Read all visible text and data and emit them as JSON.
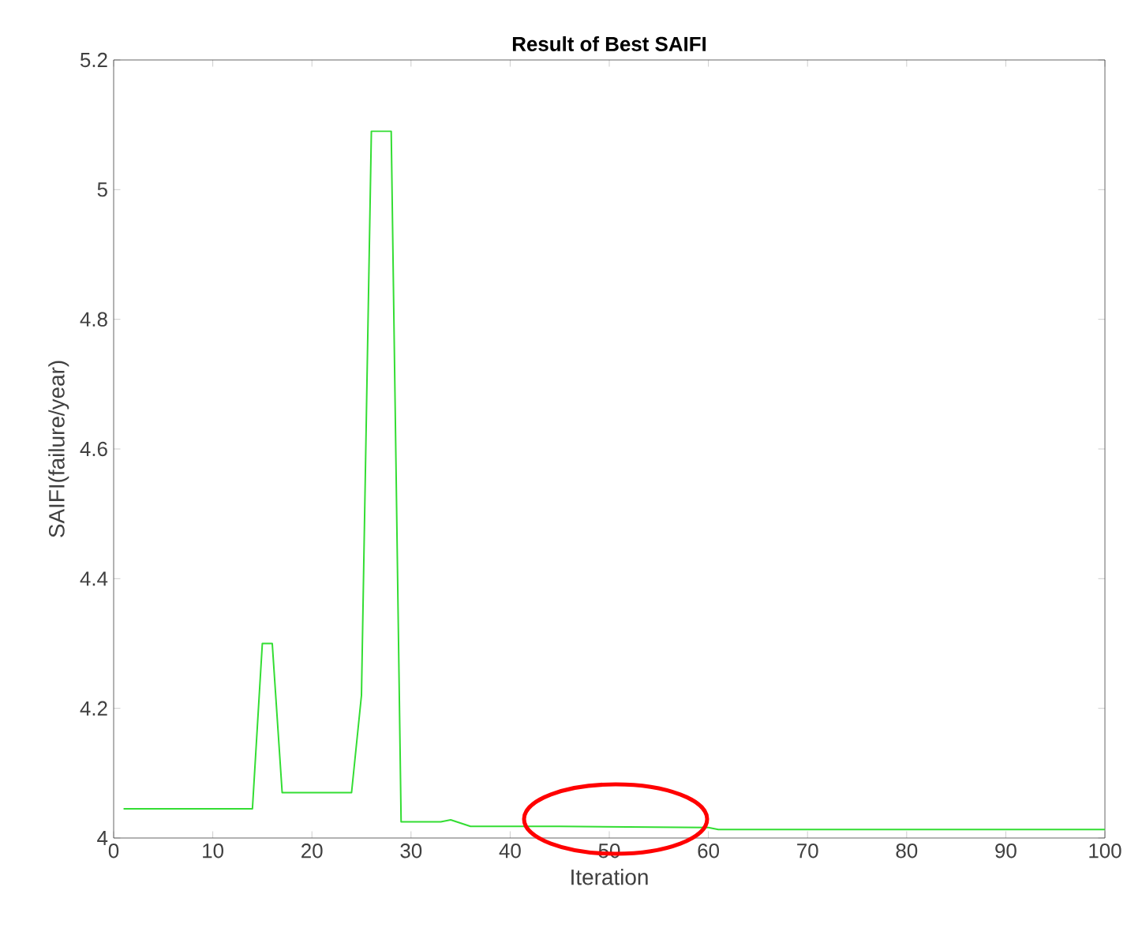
{
  "chart_data": {
    "type": "line",
    "title": "Result of Best SAIFI",
    "xlabel": "Iteration",
    "ylabel": "SAIFI(failure/year)",
    "x": [
      1,
      14,
      15,
      16,
      17,
      24,
      25,
      26,
      28,
      29,
      33,
      34,
      36,
      45,
      60,
      61,
      100
    ],
    "series": [
      {
        "color": "#33dd33",
        "values": [
          4.045,
          4.045,
          4.3,
          4.3,
          4.07,
          4.07,
          4.22,
          5.09,
          5.09,
          4.025,
          4.025,
          4.028,
          4.018,
          4.018,
          4.016,
          4.013,
          4.013
        ]
      }
    ],
    "xlim": [
      0,
      100
    ],
    "ylim": [
      4,
      5.2
    ],
    "xticks": [
      0,
      10,
      20,
      30,
      40,
      50,
      60,
      70,
      80,
      90,
      100
    ],
    "yticks": [
      4,
      4.2,
      4.4,
      4.6,
      4.8,
      5,
      5.2
    ],
    "grid": false,
    "marker": "none",
    "line_style": "solid"
  }
}
